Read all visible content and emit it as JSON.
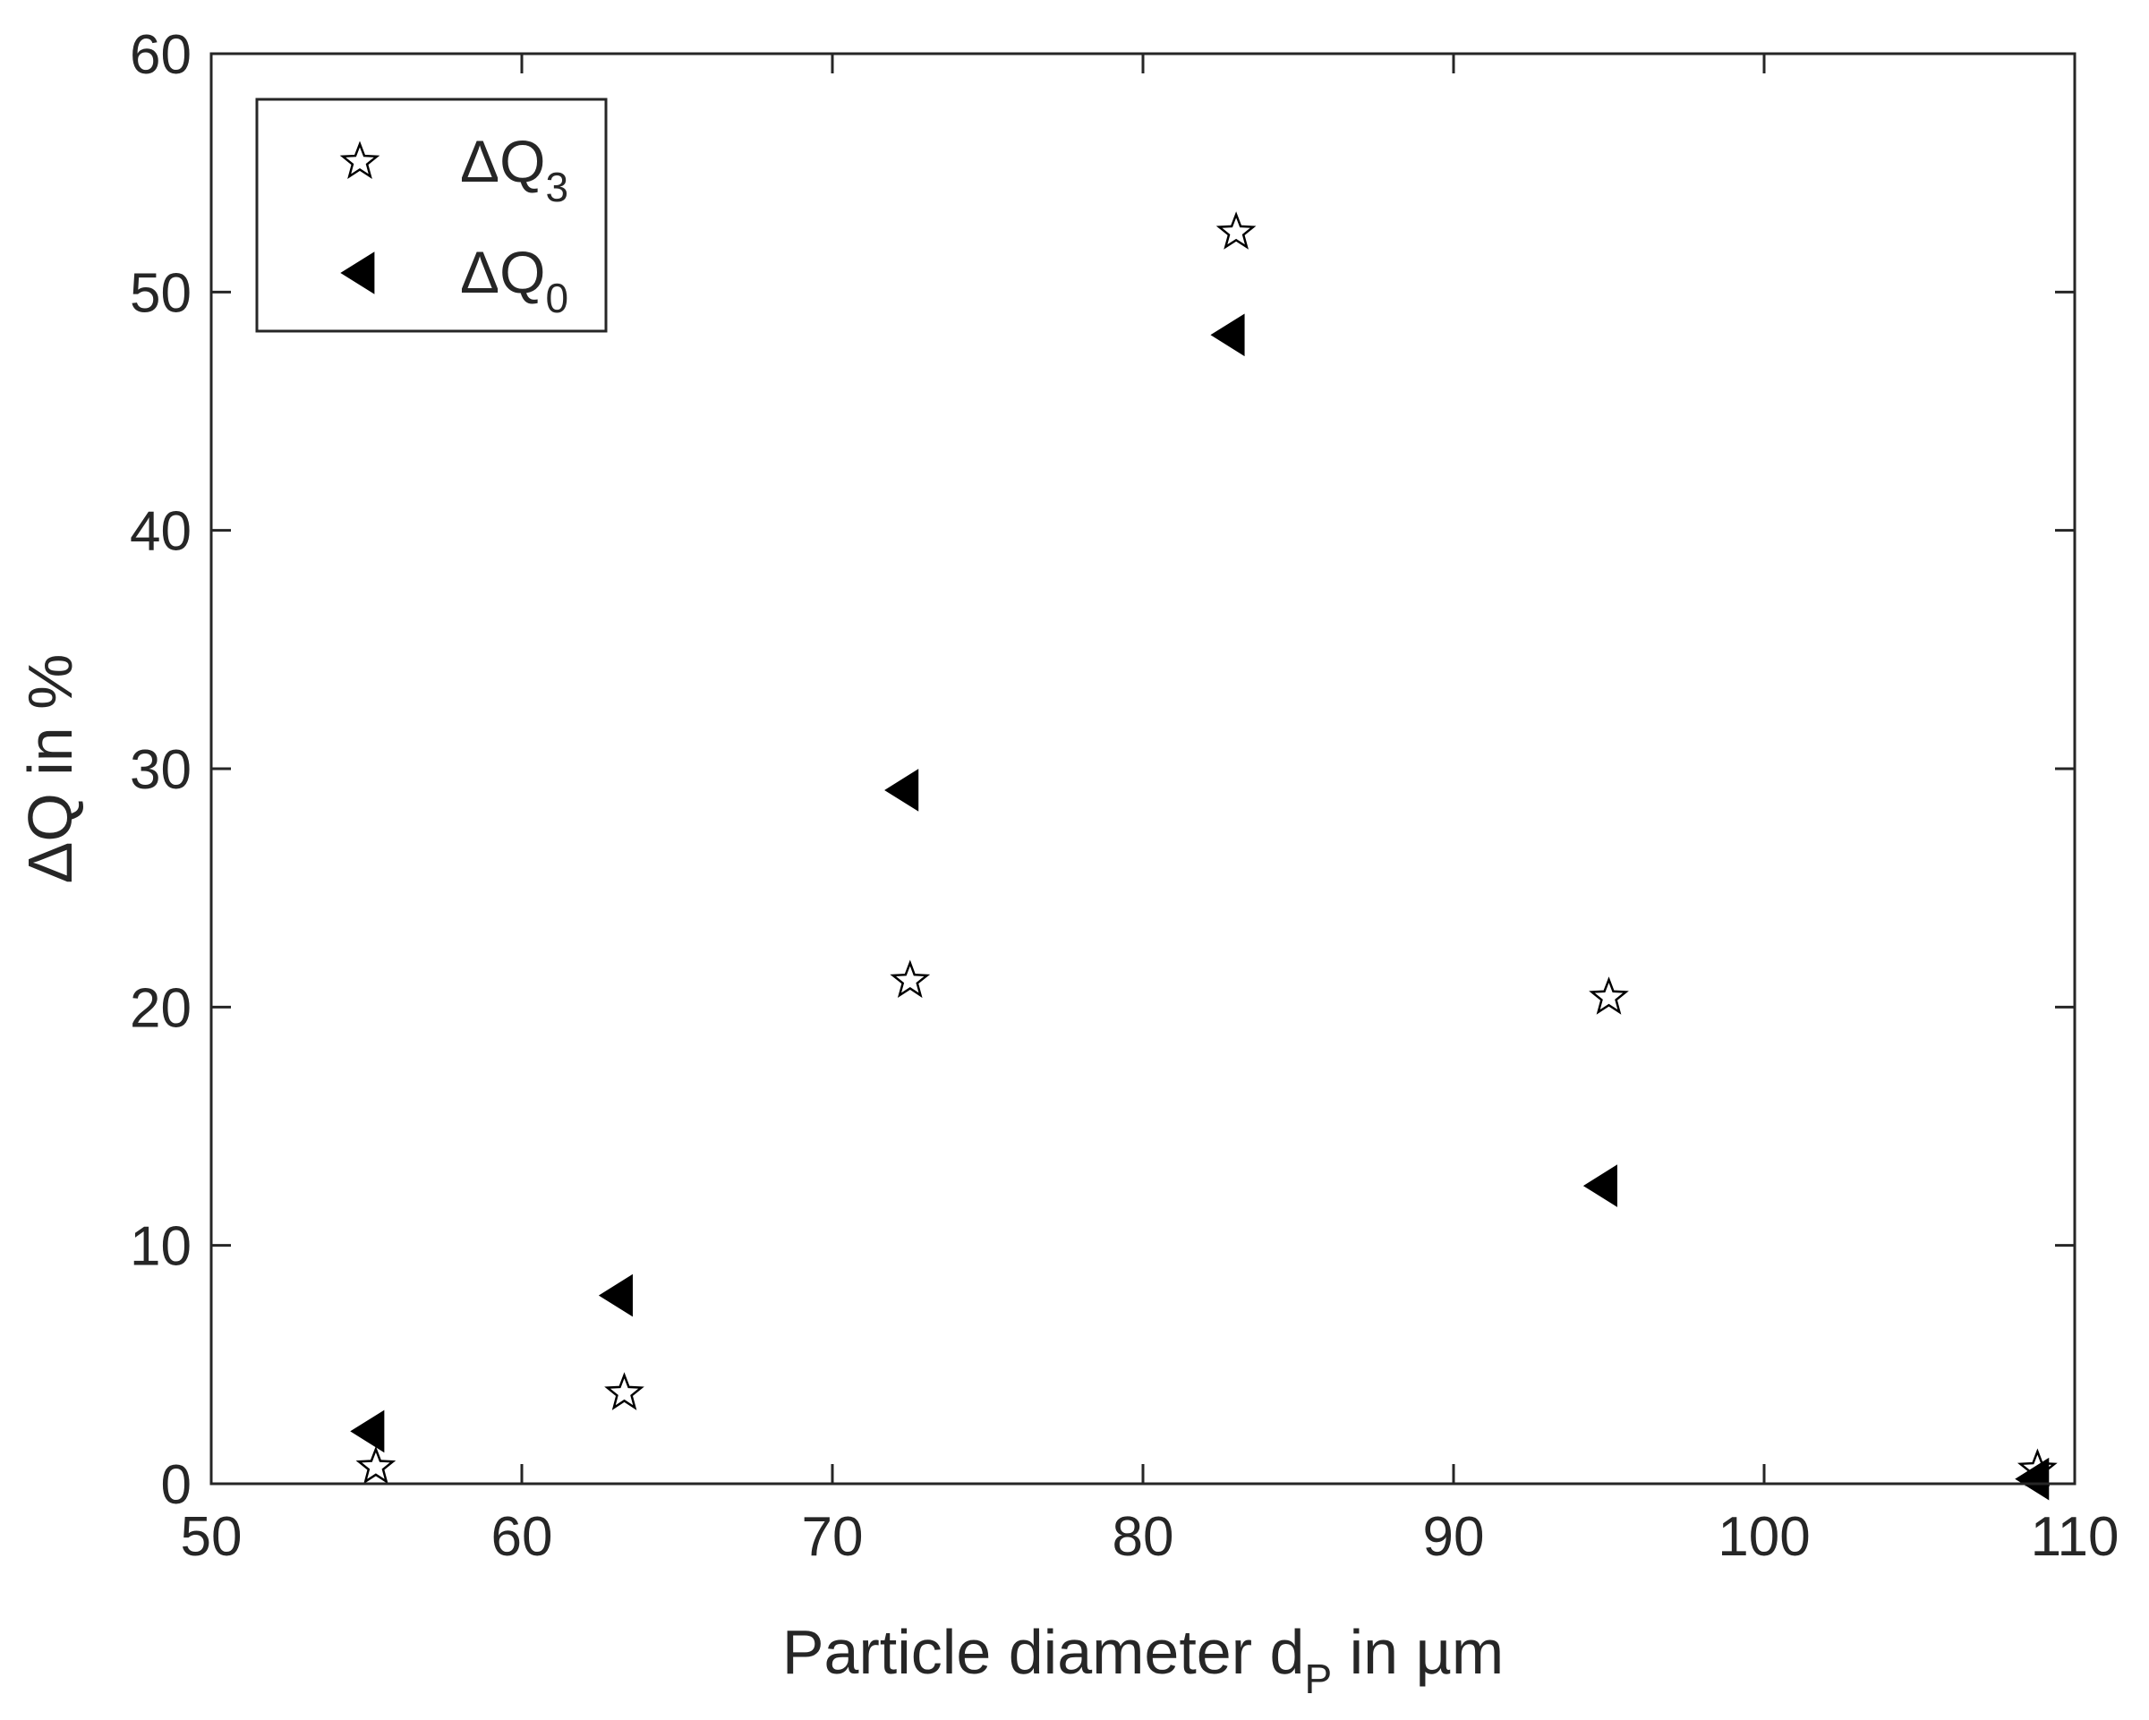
{
  "chart_data": {
    "type": "scatter",
    "xlabel": {
      "main": "Particle diameter d",
      "sub": "P",
      "tail": " in µm"
    },
    "ylabel": "ΔQ in %",
    "xlim": [
      50,
      110
    ],
    "ylim": [
      0,
      60
    ],
    "xticks": [
      50,
      60,
      70,
      80,
      90,
      100,
      110
    ],
    "yticks": [
      0,
      10,
      20,
      30,
      40,
      50,
      60
    ],
    "grid": false,
    "legend_position": "top-left",
    "series": [
      {
        "name": "ΔQ",
        "name_sub": "3",
        "marker": "star",
        "fill": "#ffffff",
        "stroke": "#000000",
        "points": [
          {
            "x": 55.3,
            "y": 0.7
          },
          {
            "x": 63.3,
            "y": 3.8
          },
          {
            "x": 72.5,
            "y": 21.1
          },
          {
            "x": 83.0,
            "y": 52.5
          },
          {
            "x": 95.0,
            "y": 20.4
          },
          {
            "x": 108.8,
            "y": 0.6
          }
        ]
      },
      {
        "name": "ΔQ",
        "name_sub": "0",
        "marker": "triangle-left",
        "fill": "#000000",
        "stroke": "#000000",
        "points": [
          {
            "x": 55.1,
            "y": 2.2
          },
          {
            "x": 63.1,
            "y": 7.9
          },
          {
            "x": 72.3,
            "y": 29.1
          },
          {
            "x": 82.8,
            "y": 48.2
          },
          {
            "x": 94.8,
            "y": 12.5
          },
          {
            "x": 108.7,
            "y": 0.2
          }
        ]
      }
    ]
  }
}
